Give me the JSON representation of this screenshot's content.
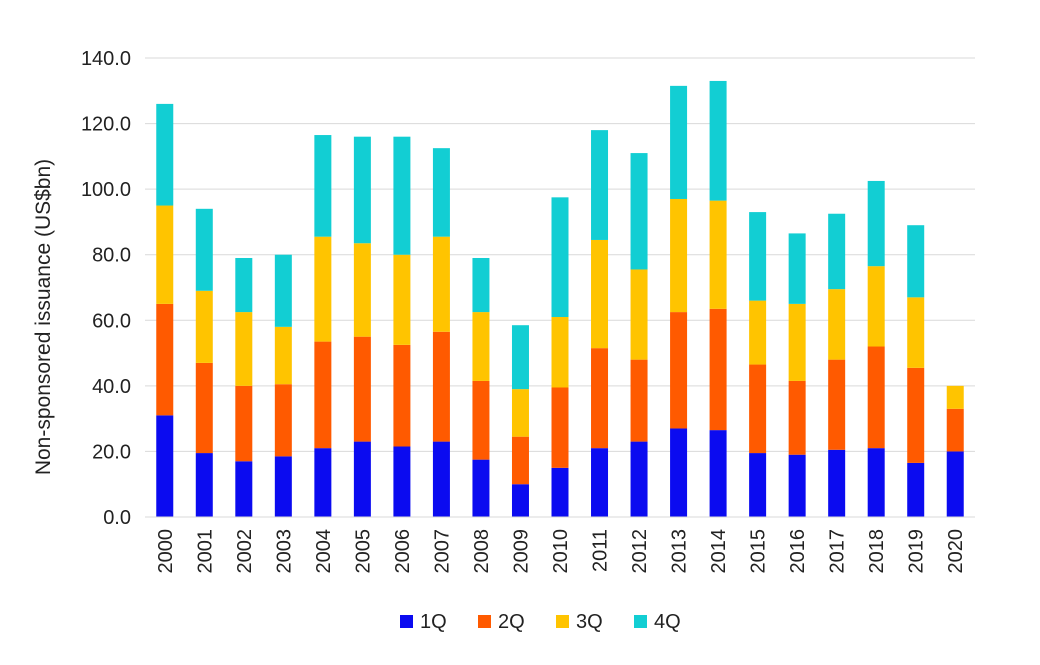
{
  "chart_data": {
    "type": "bar",
    "stacked": true,
    "ylabel": "Non-sponsored issuance (US$bn)",
    "ylim": [
      0,
      140
    ],
    "yticks": [
      0,
      20,
      40,
      60,
      80,
      100,
      120,
      140
    ],
    "ytick_labels": [
      "0.0",
      "20.0",
      "40.0",
      "60.0",
      "80.0",
      "100.0",
      "120.0",
      "140.0"
    ],
    "grid": true,
    "legend_position": "bottom",
    "categories": [
      "2000",
      "2001",
      "2002",
      "2003",
      "2004",
      "2005",
      "2006",
      "2007",
      "2008",
      "2009",
      "2010",
      "2011",
      "2012",
      "2013",
      "2014",
      "2015",
      "2016",
      "2017",
      "2018",
      "2019",
      "2020"
    ],
    "series": [
      {
        "name": "1Q",
        "color": "#0b0bf0",
        "values": [
          31,
          19.5,
          17,
          18.5,
          21,
          23,
          21.5,
          23,
          17.5,
          10,
          15,
          21,
          23,
          27,
          26.5,
          19.5,
          19,
          20.5,
          21,
          16.5,
          20
        ]
      },
      {
        "name": "2Q",
        "color": "#ff5a00",
        "values": [
          34,
          27.5,
          23,
          22,
          32.5,
          32,
          31,
          33.5,
          24,
          14.5,
          24.5,
          30.5,
          25,
          35.5,
          37,
          27,
          22.5,
          27.5,
          31,
          29,
          13
        ]
      },
      {
        "name": "3Q",
        "color": "#ffc400",
        "values": [
          30,
          22,
          22.5,
          17.5,
          32,
          28.5,
          27.5,
          29,
          21,
          14.5,
          21.5,
          33,
          27.5,
          34.5,
          33,
          19.5,
          23.5,
          21.5,
          24.5,
          21.5,
          7
        ]
      },
      {
        "name": "4Q",
        "color": "#12ced3",
        "values": [
          31,
          25,
          16.5,
          22,
          31,
          32.5,
          36,
          27,
          16.5,
          19.5,
          36.5,
          33.5,
          35.5,
          34.5,
          36.5,
          27,
          21.5,
          23,
          26,
          22,
          0
        ]
      }
    ]
  }
}
